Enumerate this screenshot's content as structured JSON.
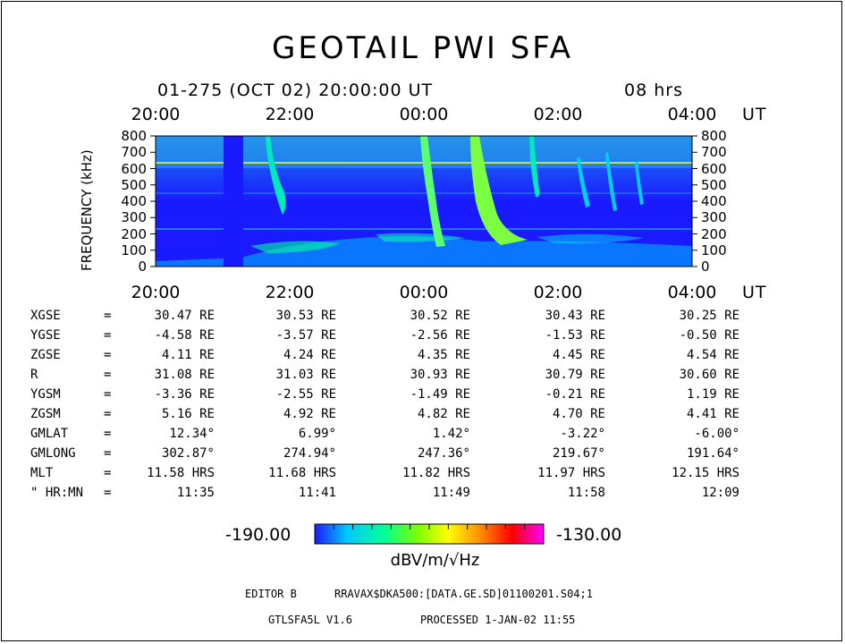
{
  "title": "GEOTAIL PWI SFA",
  "header": {
    "date": "01-275 (OCT 02) 20:00:00 UT",
    "duration": "08 hrs"
  },
  "axis_ut_label": "UT",
  "chart_data": {
    "type": "heatmap",
    "title": "GEOTAIL PWI SFA",
    "xlabel": "UT",
    "ylabel": "FREQUENCY (kHz)",
    "x_ticks": [
      "20:00",
      "22:00",
      "00:00",
      "02:00",
      "04:00"
    ],
    "y_ticks": [
      0,
      100,
      200,
      300,
      400,
      500,
      600,
      700,
      800
    ],
    "ylim": [
      0,
      800
    ],
    "colorbar": {
      "min": "-190.00",
      "max": "-130.00",
      "unit": "dBV/m/√Hz",
      "colors": [
        "#1a1aff",
        "#00c8ff",
        "#00ff9a",
        "#7cff00",
        "#ffff00",
        "#ff9000",
        "#ff0000",
        "#ff00ff"
      ]
    },
    "features": [
      {
        "x_hr": 1.05,
        "y": [
          0,
          800
        ],
        "level": "data gap"
      },
      {
        "x_hr": 1.6,
        "y": [
          300,
          750
        ],
        "level": "type III burst"
      },
      {
        "x_hr": 4.0,
        "y": [
          120,
          800
        ],
        "level": "type III burst"
      },
      {
        "x_hr": 4.7,
        "y": [
          100,
          800
        ],
        "level": "type III burst"
      },
      {
        "x_hr": 5.6,
        "y": [
          420,
          800
        ],
        "level": "type III burst"
      },
      {
        "x_hr": 6.3,
        "y": [
          350,
          650
        ],
        "level": "type III burst"
      },
      {
        "x_hr": 7.5,
        "y": [
          400,
          650
        ],
        "level": "type III burst"
      }
    ]
  },
  "ephemeris": {
    "rows": [
      {
        "label": "XGSE",
        "values": [
          "30.47 RE",
          "30.53 RE",
          "30.52 RE",
          "30.43 RE",
          "30.25 RE"
        ]
      },
      {
        "label": "YGSE",
        "values": [
          "-4.58 RE",
          "-3.57 RE",
          "-2.56 RE",
          "-1.53 RE",
          "-0.50 RE"
        ]
      },
      {
        "label": "ZGSE",
        "values": [
          "4.11 RE",
          "4.24 RE",
          "4.35 RE",
          "4.45 RE",
          "4.54 RE"
        ]
      },
      {
        "label": "R",
        "values": [
          "31.08 RE",
          "31.03 RE",
          "30.93 RE",
          "30.79 RE",
          "30.60 RE"
        ]
      },
      {
        "label": "YGSM",
        "values": [
          "-3.36 RE",
          "-2.55 RE",
          "-1.49 RE",
          "-0.21 RE",
          "1.19 RE"
        ]
      },
      {
        "label": "ZGSM",
        "values": [
          "5.16 RE",
          "4.92 RE",
          "4.82 RE",
          "4.70 RE",
          "4.41 RE"
        ]
      },
      {
        "label": "GMLAT",
        "values": [
          "12.34°",
          "6.99°",
          "1.42°",
          "-3.22°",
          "-6.00°"
        ]
      },
      {
        "label": "GMLONG",
        "values": [
          "302.87°",
          "274.94°",
          "247.36°",
          "219.67°",
          "191.64°"
        ]
      },
      {
        "label": "MLT",
        "values": [
          "11.58 HRS",
          "11.68 HRS",
          "11.82 HRS",
          "11.97 HRS",
          "12.15 HRS"
        ]
      },
      {
        "label": "\" HR:MN",
        "values": [
          "11:35",
          "11:41",
          "11:49",
          "11:58",
          "12:09"
        ]
      }
    ]
  },
  "footer": {
    "editor": "EDITOR B",
    "path": "RRAVAX$DKA500:[DATA.GE.SD]01100201.S04;1",
    "version": "GTLSFA5L V1.6",
    "processed": "PROCESSED  1-JAN-02  11:55"
  }
}
